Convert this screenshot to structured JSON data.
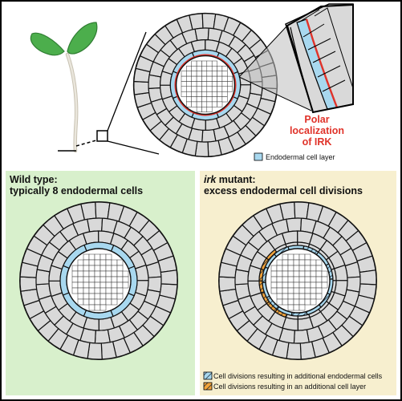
{
  "colors": {
    "frame": "#000000",
    "wild_type_bg": "#d8f0cc",
    "mutant_bg": "#f7efcf",
    "cell_fill": "#d9d9d9",
    "endodermis": "#a8d8ef",
    "polar_red": "#e0332a",
    "extra_layer": "#f2a33a",
    "seedling_green": "#4cae4c"
  },
  "annotation": {
    "polar_line1": "Polar",
    "polar_line2": "localization",
    "polar_line3": "of IRK"
  },
  "legend_top": {
    "endodermal": "Endodermal cell layer"
  },
  "left_panel": {
    "title_line1": "Wild type:",
    "title_line2": "typically 8 endodermal cells"
  },
  "right_panel": {
    "title_italic": "irk",
    "title_rest": " mutant:",
    "title_line2": "excess endodermal cell divisions"
  },
  "legend_bottom": {
    "hatch_blue": "Cell divisions resulting in additional endodermal cells",
    "hatch_orange": "Cell divisions resulting in an additional cell layer"
  }
}
